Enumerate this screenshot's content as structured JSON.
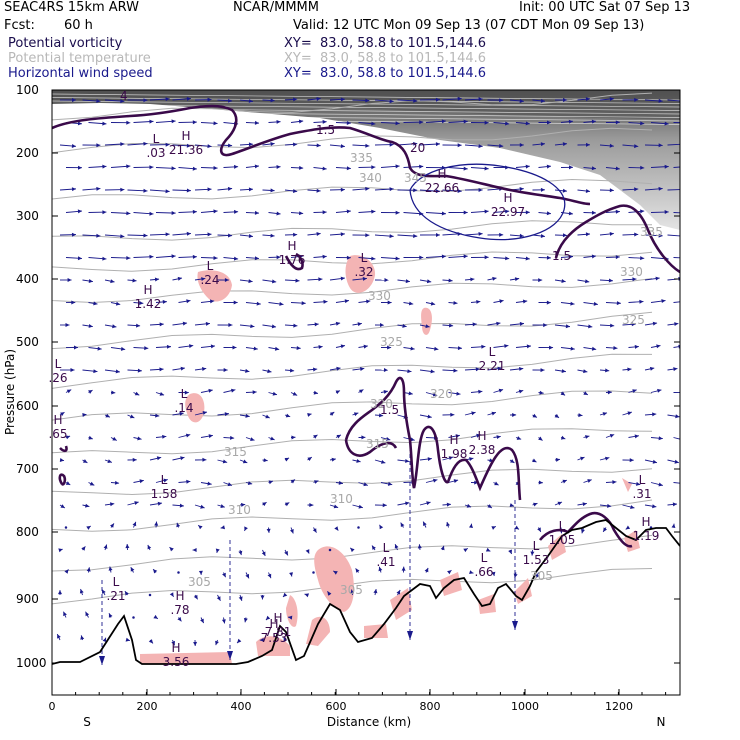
{
  "header": {
    "model": "SEAC4RS 15km ARW",
    "org": "NCAR/MMMM",
    "init": "Init: 00 UTC Sat 07 Sep 13",
    "fcst_label": "Fcst:",
    "fcst_value": "60 h",
    "valid": "Valid: 12 UTC Mon 09 Sep 13 (07 CDT Mon 09 Sep 13)",
    "fields": [
      {
        "name": "Potential vorticity",
        "xy": "XY=  83.0, 58.8 to 101.5,144.6",
        "color": "#1a0d4d"
      },
      {
        "name": "Potential temperature",
        "xy": "XY=  83.0, 58.8 to 101.5,144.6",
        "color": "#b8b8b8"
      },
      {
        "name": "Horizontal wind speed",
        "xy": "XY=  83.0, 58.8 to 101.5,144.6",
        "color": "#1a1a8c"
      }
    ]
  },
  "axes": {
    "ylabel": "Pressure (hPa)",
    "xlabel": "Distance (km)",
    "yticks": [
      "100",
      "200",
      "300",
      "400",
      "500",
      "600",
      "700",
      "800",
      "900",
      "1000"
    ],
    "xticks": [
      "0",
      "200",
      "400",
      "600",
      "800",
      "1000",
      "1200"
    ],
    "left_end": "S",
    "right_end": "N"
  },
  "theta_labels": [
    "335",
    "340",
    "345",
    "330",
    "330",
    "335",
    "325",
    "325",
    "320",
    "320",
    "315",
    "315",
    "310",
    "310",
    "305",
    "305",
    "305"
  ],
  "pv_labels": [
    "1.5",
    "1.5",
    "1.5",
    "20",
    "4"
  ],
  "hl_markers": [
    {
      "letter": "L",
      "value": ".03"
    },
    {
      "letter": "H",
      "value": "21.36"
    },
    {
      "letter": "H",
      "value": "22.66"
    },
    {
      "letter": "H",
      "value": "22.97"
    },
    {
      "letter": "H",
      "value": "1.76"
    },
    {
      "letter": "L",
      "value": ".24"
    },
    {
      "letter": "L",
      "value": ".32"
    },
    {
      "letter": "H",
      "value": "1.42"
    },
    {
      "letter": "L",
      "value": "2.21"
    },
    {
      "letter": "L",
      "value": ".26"
    },
    {
      "letter": "L",
      "value": ".14"
    },
    {
      "letter": "H",
      "value": ".65"
    },
    {
      "letter": "H",
      "value": "1.98"
    },
    {
      "letter": "H",
      "value": "2.38"
    },
    {
      "letter": "L",
      "value": "1.58"
    },
    {
      "letter": "L",
      "value": ".31"
    },
    {
      "letter": "H",
      "value": "1.19"
    },
    {
      "letter": "L",
      "value": "1.05"
    },
    {
      "letter": "L",
      "value": "1.53"
    },
    {
      "letter": "L",
      "value": ".41"
    },
    {
      "letter": "L",
      "value": ".66"
    },
    {
      "letter": "L",
      "value": ".21"
    },
    {
      "letter": "H",
      "value": ".78"
    },
    {
      "letter": "H",
      "value": "7.81"
    },
    {
      "letter": "H",
      "value": "7.53"
    },
    {
      "letter": "H",
      "value": "3.56"
    }
  ],
  "colors": {
    "pv": "#3a0a4a",
    "theta": "#a8a8a8",
    "wind": "#1a1a8c",
    "pink": "#f4b4b4",
    "terrain": "#000000"
  }
}
